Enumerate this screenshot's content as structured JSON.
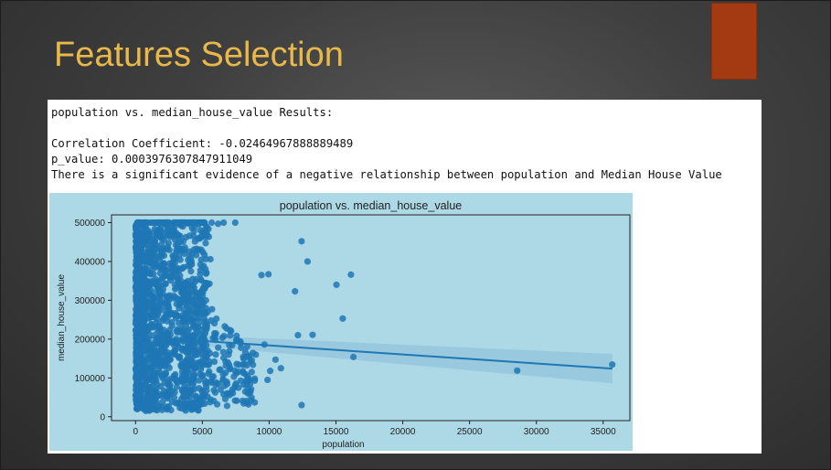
{
  "slide": {
    "title": "Features Selection",
    "accent_color": "#a33a12",
    "title_color": "#e8b84a"
  },
  "output": {
    "header": "population vs. median_house_value Results:",
    "correlation": "Correlation Coefficient: -0.02464967888889489",
    "p_value": "p_value: 0.0003976307847911049",
    "conclusion": "There is a significant evidence of a negative relationship between population and Median House Value"
  },
  "chart_data": {
    "type": "scatter",
    "title": "population vs. median_house_value",
    "xlabel": "population",
    "ylabel": "median_house_value",
    "xlim": [
      -1800,
      37000
    ],
    "ylim": [
      -10000,
      520000
    ],
    "xticks": [
      0,
      5000,
      10000,
      15000,
      20000,
      25000,
      30000,
      35000
    ],
    "yticks": [
      0,
      100000,
      200000,
      300000,
      400000,
      500000
    ],
    "point_color": "#1f77b4",
    "background_color": "#add8e6",
    "regression_line": {
      "x": [
        3,
        35682
      ],
      "y": [
        207000,
        124000
      ]
    },
    "notable_points": [
      {
        "x": 35682,
        "y": 134400
      },
      {
        "x": 28566,
        "y": 118800
      },
      {
        "x": 16305,
        "y": 154000
      },
      {
        "x": 15507,
        "y": 253000
      },
      {
        "x": 16122,
        "y": 366000
      },
      {
        "x": 15037,
        "y": 340000
      },
      {
        "x": 12873,
        "y": 400000
      },
      {
        "x": 12427,
        "y": 452000
      },
      {
        "x": 13251,
        "y": 211000
      },
      {
        "x": 12153,
        "y": 210000
      },
      {
        "x": 12427,
        "y": 30000
      },
      {
        "x": 11935,
        "y": 323000
      },
      {
        "x": 10877,
        "y": 125000
      },
      {
        "x": 10475,
        "y": 147000
      },
      {
        "x": 9947,
        "y": 367000
      },
      {
        "x": 9427,
        "y": 365000
      },
      {
        "x": 10077,
        "y": 118000
      },
      {
        "x": 9880,
        "y": 95000
      },
      {
        "x": 9647,
        "y": 186000
      },
      {
        "x": 9000,
        "y": 160000
      },
      {
        "x": 7460,
        "y": 500000
      },
      {
        "x": 6592,
        "y": 500000
      },
      {
        "x": 6180,
        "y": 497000
      },
      {
        "x": 5700,
        "y": 500000
      },
      {
        "x": 6850,
        "y": 60000
      },
      {
        "x": 6850,
        "y": 28000
      }
    ]
  }
}
